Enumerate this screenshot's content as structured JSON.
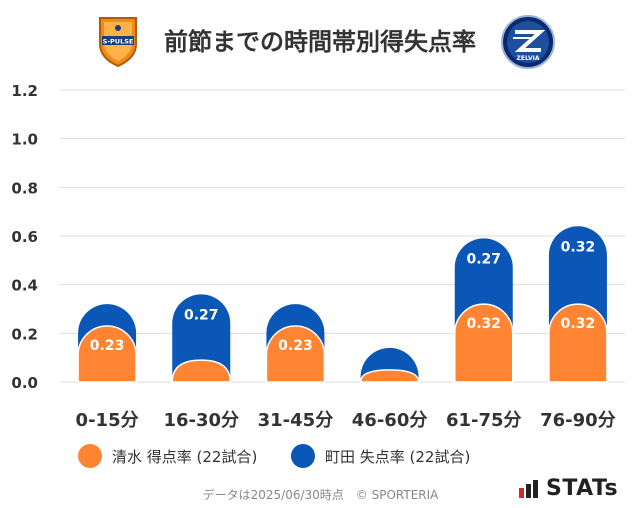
{
  "header": {
    "title": "前節までの時間帯別得失点率",
    "home_logo": "shimizu-s-pulse-crest",
    "home_logo_text": "S-PULSE",
    "away_logo": "machida-zelvia-crest",
    "away_logo_text": "ZELVIA"
  },
  "chart_data": {
    "type": "bar",
    "stacked": true,
    "categories": [
      "0-15分",
      "16-30分",
      "31-45分",
      "46-60分",
      "61-75分",
      "76-90分"
    ],
    "series": [
      {
        "name": "清水 得点率 (22試合)",
        "color": "#FF8533",
        "values": [
          0.23,
          0.09,
          0.23,
          0.05,
          0.32,
          0.32
        ],
        "labels": [
          "0.23",
          "",
          "0.23",
          "",
          "0.32",
          "0.32"
        ]
      },
      {
        "name": "町田 失点率 (22試合)",
        "color": "#0A57B8",
        "values": [
          0.09,
          0.27,
          0.09,
          0.09,
          0.27,
          0.32
        ],
        "labels": [
          "",
          "0.27",
          "",
          "",
          "0.27",
          "0.32"
        ]
      }
    ],
    "ylim": [
      0,
      1.2
    ],
    "yticks": [
      "0.0",
      "0.2",
      "0.4",
      "0.6",
      "0.8",
      "1.0",
      "1.2"
    ],
    "grid": true,
    "legend_position": "bottom"
  },
  "footer": {
    "source": "データは2025/06/30時点　© SPORTERIA",
    "brand": "STATs"
  }
}
